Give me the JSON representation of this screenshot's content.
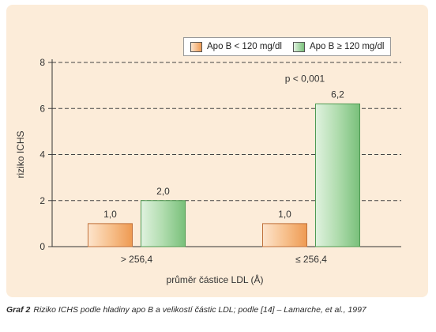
{
  "chart_data": {
    "type": "bar",
    "title": "",
    "xlabel": "průměr částice LDL (Å)",
    "ylabel": "riziko ICHS",
    "ylim": [
      0,
      8
    ],
    "yticks": [
      0,
      2,
      4,
      6,
      8
    ],
    "grid": true,
    "legend_position": "top-right",
    "categories": [
      "> 256,4",
      "≤ 256,4"
    ],
    "series": [
      {
        "name": "Apo B < 120 mg/dl",
        "values": [
          1.0,
          1.0
        ],
        "labels": [
          "1,0",
          "1,0"
        ],
        "color": "#f2a86a"
      },
      {
        "name": "Apo B ≥ 120 mg/dl",
        "values": [
          2.0,
          6.2
        ],
        "labels": [
          "2,0",
          "6,2"
        ],
        "color": "#8dc98d"
      }
    ],
    "annotations": [
      {
        "text": "p < 0,001",
        "category": "≤ 256,4"
      }
    ]
  },
  "caption": {
    "lead": "Graf 2",
    "text": "Riziko ICHS podle hladiny apo B a velikostí částic LDL; podle [14] – Lamarche, et al., 1997"
  }
}
